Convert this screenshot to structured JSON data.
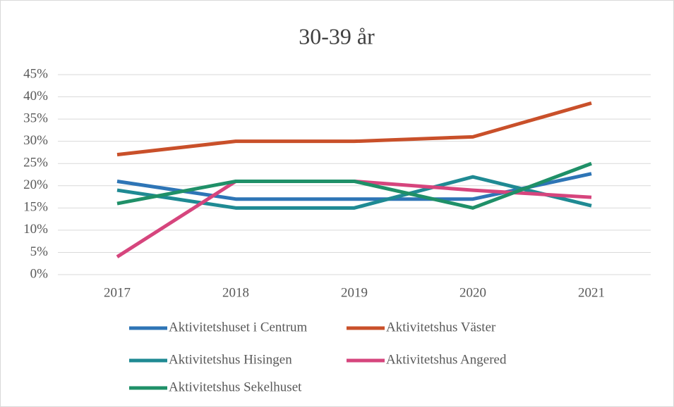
{
  "chart_data": {
    "type": "line",
    "title": "30-39 år",
    "categories": [
      "2017",
      "2018",
      "2019",
      "2020",
      "2021"
    ],
    "series": [
      {
        "name": "Aktivitetshuset i Centrum",
        "color": "#2e75b6",
        "values": [
          21,
          17,
          17,
          17,
          22.7
        ]
      },
      {
        "name": "Aktivitetshus Väster",
        "color": "#c9502a",
        "values": [
          27,
          30,
          30,
          31,
          38.6
        ]
      },
      {
        "name": "Aktivitetshus Hisingen",
        "color": "#1f8a93",
        "values": [
          19,
          15,
          15,
          22,
          15.5
        ]
      },
      {
        "name": "Aktivitetshus Angered",
        "color": "#d6457d",
        "values": [
          4,
          21,
          21,
          19,
          17.4
        ]
      },
      {
        "name": "Aktivitetshus Sekelhuset",
        "color": "#1f9068",
        "values": [
          16,
          21,
          21,
          15,
          25
        ]
      }
    ],
    "ylim": [
      0,
      45
    ],
    "yticks": [
      {
        "value": 0,
        "label": "0%"
      },
      {
        "value": 5,
        "label": "5%"
      },
      {
        "value": 10,
        "label": "10%"
      },
      {
        "value": 15,
        "label": "15%"
      },
      {
        "value": 20,
        "label": "20%"
      },
      {
        "value": 25,
        "label": "25%"
      },
      {
        "value": 30,
        "label": "30%"
      },
      {
        "value": 35,
        "label": "35%"
      },
      {
        "value": 40,
        "label": "40%"
      },
      {
        "value": 45,
        "label": "45%"
      }
    ],
    "grid": true,
    "legend": "bottom"
  }
}
